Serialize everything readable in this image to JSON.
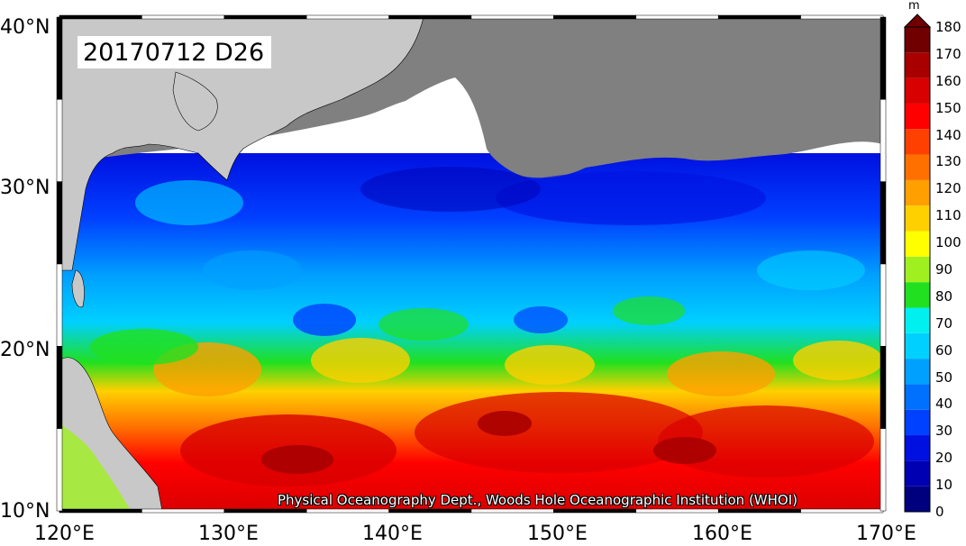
{
  "title": "20170712 D26",
  "credit": "Physical Oceanography Dept., Woods Hole Oceanographic Institution (WHOI)",
  "colorbar": {
    "unit": "m",
    "ticks": [
      "0",
      "10",
      "20",
      "30",
      "40",
      "50",
      "60",
      "70",
      "80",
      "90",
      "100",
      "110",
      "120",
      "130",
      "140",
      "150",
      "160",
      "170",
      "180"
    ],
    "colors": [
      "#00007f",
      "#0000b2",
      "#0010e0",
      "#0040ff",
      "#0070ff",
      "#00a0ff",
      "#00d0ff",
      "#00f0f0",
      "#20e020",
      "#a0f020",
      "#ffff00",
      "#ffd000",
      "#ffa000",
      "#ff7000",
      "#ff4000",
      "#ff0000",
      "#d80000",
      "#a80000",
      "#700000"
    ]
  },
  "axes": {
    "x_ticks": [
      "120°E",
      "130°E",
      "140°E",
      "150°E",
      "160°E",
      "170°E"
    ],
    "y_ticks": [
      "10°N",
      "20°N",
      "30°N",
      "40°N"
    ],
    "lon_range": [
      120,
      170
    ],
    "lat_range": [
      10,
      40
    ]
  },
  "colors": {
    "land": "#c8c8c8",
    "no_data": "#808080",
    "frame_dark": "#000000",
    "frame_light": "#ffffff"
  }
}
